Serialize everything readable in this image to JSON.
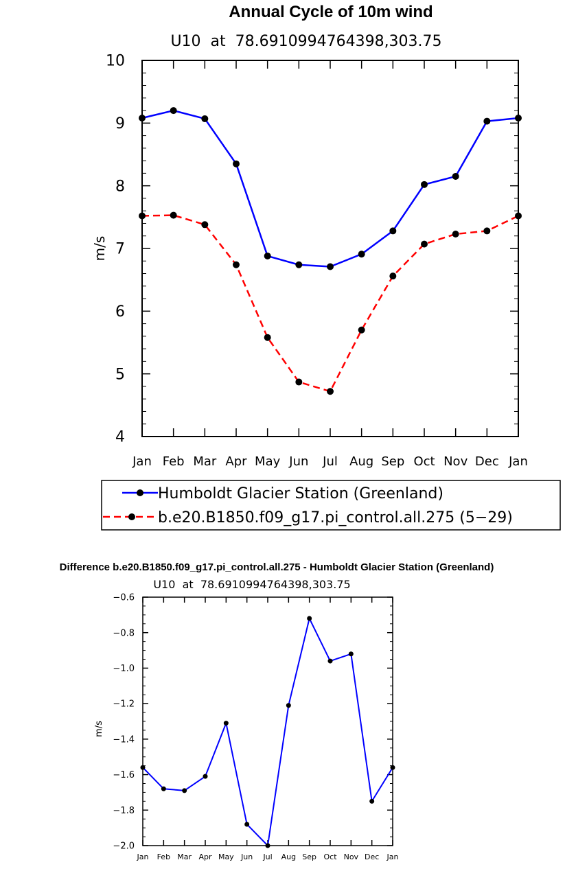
{
  "chart_data": [
    {
      "type": "line",
      "title": "Annual Cycle of 10m wind",
      "subtitle": "U10  at  78.6910994764398,303.75",
      "xlabel": "",
      "ylabel": "m/s",
      "categories": [
        "Jan",
        "Feb",
        "Mar",
        "Apr",
        "May",
        "Jun",
        "Jul",
        "Aug",
        "Sep",
        "Oct",
        "Nov",
        "Dec",
        "Jan"
      ],
      "ylim": [
        4,
        10
      ],
      "yticks": [
        "4",
        "5",
        "6",
        "7",
        "8",
        "9",
        "10"
      ],
      "series": [
        {
          "name": "Humboldt Glacier Station (Greenland)",
          "color": "#0000ff",
          "dash": "solid",
          "values": [
            9.08,
            9.2,
            9.07,
            8.35,
            6.88,
            6.74,
            6.71,
            6.91,
            7.28,
            8.02,
            8.15,
            9.03,
            9.08
          ]
        },
        {
          "name": "b.e20.B1850.f09_g17.pi_control.all.275 (5−29)",
          "color": "#ff0000",
          "dash": "dashed",
          "values": [
            7.52,
            7.53,
            7.38,
            6.74,
            5.58,
            4.87,
            4.72,
            5.7,
            6.56,
            7.07,
            7.23,
            7.28,
            7.52
          ]
        }
      ],
      "legend_position": "below"
    },
    {
      "type": "line",
      "title": "Difference b.e20.B1850.f09_g17.pi_control.all.275 - Humboldt Glacier Station (Greenland)",
      "subtitle": "U10  at  78.6910994764398,303.75",
      "xlabel": "",
      "ylabel": "m/s",
      "categories": [
        "Jan",
        "Feb",
        "Mar",
        "Apr",
        "May",
        "Jun",
        "Jul",
        "Aug",
        "Sep",
        "Oct",
        "Nov",
        "Dec",
        "Jan"
      ],
      "ylim": [
        -2.0,
        -0.6
      ],
      "yticks": [
        "−2.0",
        "−1.8",
        "−1.6",
        "−1.4",
        "−1.2",
        "−1.0",
        "−0.8",
        "−0.6"
      ],
      "series": [
        {
          "color": "#0000ff",
          "dash": "solid",
          "values": [
            -1.56,
            -1.68,
            -1.69,
            -1.61,
            -1.31,
            -1.88,
            -2.0,
            -1.21,
            -0.72,
            -0.96,
            -0.92,
            -1.75,
            -1.56
          ]
        }
      ]
    }
  ]
}
